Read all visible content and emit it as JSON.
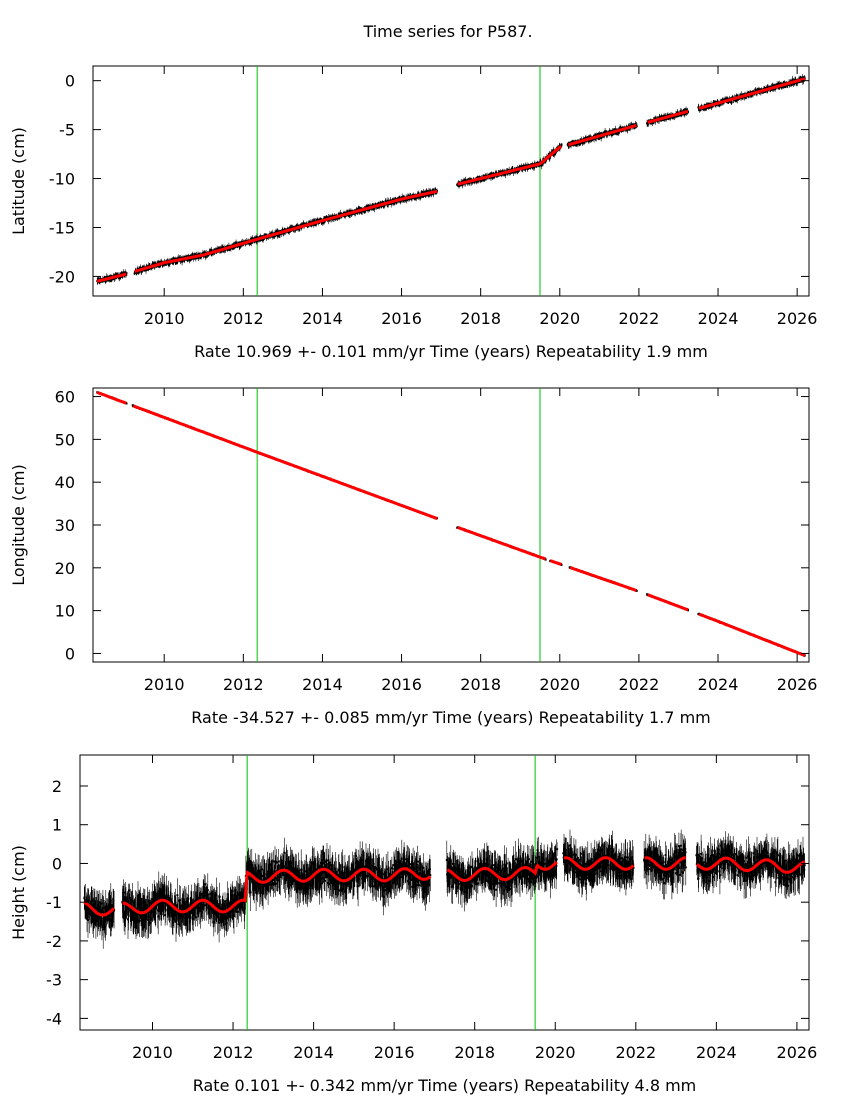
{
  "title": "Time series for P587.",
  "colors": {
    "data_points": "#000000",
    "model_fit": "#ff0000",
    "event_lines": "#00c000"
  },
  "x_ticks": [
    2010,
    2012,
    2014,
    2016,
    2018,
    2020,
    2022,
    2024,
    2026
  ],
  "event_lines_x": [
    2012.35,
    2019.5
  ],
  "chart_data": [
    {
      "type": "scatter",
      "ylabel": "Latitude (cm)",
      "xlabel": "Time (years)",
      "rate_text": "Rate 10.969 +- 0.101 mm/yr",
      "time_text": "Time (years)",
      "repeat_text": "Repeatability 1.9 mm",
      "xlim": [
        2008.2,
        2026.3
      ],
      "ylim": [
        -22,
        1.5
      ],
      "yticks": [
        0,
        -5,
        -10,
        -15,
        -20
      ],
      "gaps": [
        [
          2009.05,
          2009.25
        ],
        [
          2016.9,
          2017.4
        ],
        [
          2020.05,
          2020.2
        ],
        [
          2021.95,
          2022.2
        ],
        [
          2023.25,
          2023.5
        ]
      ],
      "series": [
        {
          "values": [
            [
              2008.3,
              -20.5
            ],
            [
              2009.0,
              -19.8
            ],
            [
              2010.0,
              -18.6
            ],
            [
              2011.0,
              -17.8
            ],
            [
              2012.35,
              -16.2
            ],
            [
              2014.0,
              -14.3
            ],
            [
              2016.0,
              -12.1
            ],
            [
              2016.9,
              -11.3
            ],
            [
              2017.4,
              -10.6
            ],
            [
              2018.0,
              -10.0
            ],
            [
              2019.5,
              -8.5
            ],
            [
              2020.0,
              -6.8
            ],
            [
              2022.0,
              -4.5
            ],
            [
              2024.0,
              -2.3
            ],
            [
              2026.2,
              0.2
            ]
          ]
        }
      ],
      "noise": 0.35,
      "errbar": 0.25
    },
    {
      "type": "scatter",
      "ylabel": "Longitude (cm)",
      "xlabel": "Time (years)",
      "rate_text": "Rate -34.527 +- 0.085 mm/yr",
      "time_text": "Time (years)",
      "repeat_text": "Repeatability 1.7 mm",
      "xlim": [
        2008.2,
        2026.3
      ],
      "ylim": [
        -2,
        62
      ],
      "yticks": [
        60,
        50,
        40,
        30,
        20,
        10,
        0
      ],
      "gaps": [
        [
          2009.05,
          2009.2
        ],
        [
          2016.9,
          2017.4
        ],
        [
          2019.65,
          2019.75
        ],
        [
          2020.05,
          2020.25
        ],
        [
          2021.95,
          2022.2
        ],
        [
          2023.25,
          2023.5
        ]
      ],
      "series": [
        {
          "values": [
            [
              2008.3,
              61.0
            ],
            [
              2012.35,
              47.0
            ],
            [
              2016.9,
              31.5
            ],
            [
              2017.4,
              29.5
            ],
            [
              2019.5,
              22.5
            ],
            [
              2022.0,
              14.5
            ],
            [
              2024.0,
              7.5
            ],
            [
              2026.2,
              -0.5
            ]
          ]
        }
      ],
      "noise": 0.15,
      "errbar": 0.2
    },
    {
      "type": "scatter",
      "ylabel": "Height (cm)",
      "xlabel": "Time (years)",
      "rate_text": "Rate 0.101 +- 0.342 mm/yr",
      "time_text": "Time (years)",
      "repeat_text": "Repeatability 4.8 mm",
      "xlim": [
        2008.2,
        2026.3
      ],
      "ylim": [
        -4.3,
        2.8
      ],
      "yticks": [
        2,
        1,
        0,
        -1,
        -2,
        -3,
        -4
      ],
      "gaps": [
        [
          2009.05,
          2009.25
        ],
        [
          2016.9,
          2017.3
        ],
        [
          2020.05,
          2020.2
        ],
        [
          2021.95,
          2022.2
        ],
        [
          2023.25,
          2023.5
        ]
      ],
      "series": [
        {
          "values": [
            [
              2008.3,
              -1.15
            ],
            [
              2009.0,
              -1.2
            ],
            [
              2010.0,
              -1.1
            ],
            [
              2011.0,
              -1.1
            ],
            [
              2012.3,
              -1.1
            ],
            [
              2012.35,
              -0.35
            ],
            [
              2014.0,
              -0.3
            ],
            [
              2016.0,
              -0.3
            ],
            [
              2016.9,
              -0.25
            ],
            [
              2017.3,
              -0.3
            ],
            [
              2019.5,
              -0.25
            ],
            [
              2019.55,
              0.0
            ],
            [
              2022.0,
              0.0
            ],
            [
              2024.0,
              0.0
            ],
            [
              2026.2,
              -0.1
            ]
          ]
        }
      ],
      "noise": 0.5,
      "errbar": 0.35,
      "seasonal_amp": 0.15
    }
  ]
}
